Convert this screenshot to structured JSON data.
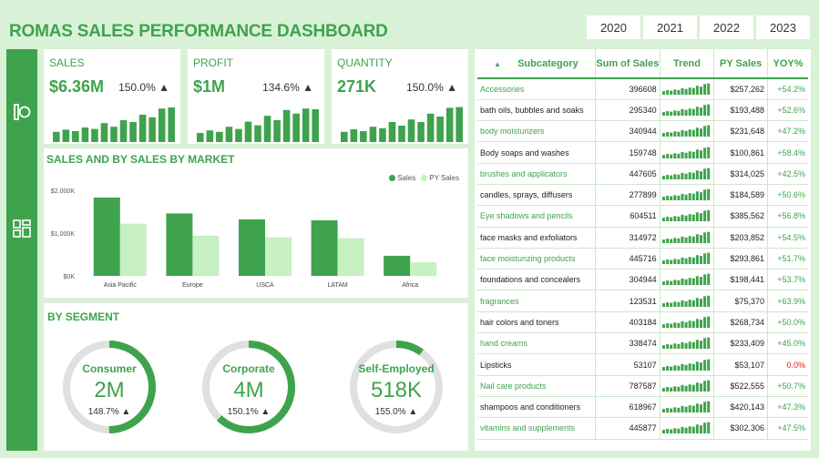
{
  "header": {
    "title": "ROMAS SALES PERFORMANCE DASHBOARD"
  },
  "years": [
    "2020",
    "2021",
    "2022",
    "2023"
  ],
  "colors": {
    "accent": "#3fa34d",
    "light": "#c7f0c3",
    "neutral": "#e0e0e0"
  },
  "kpis": [
    {
      "label": "SALES",
      "value": "$6.36M",
      "pct": "150.0% ▲",
      "trend": [
        0.28,
        0.34,
        0.3,
        0.4,
        0.36,
        0.52,
        0.42,
        0.6,
        0.55,
        0.75,
        0.68,
        0.92,
        0.95
      ]
    },
    {
      "label": "PROFIT",
      "value": "$1M",
      "pct": "134.6% ▲",
      "trend": [
        0.25,
        0.32,
        0.28,
        0.42,
        0.36,
        0.56,
        0.46,
        0.72,
        0.6,
        0.88,
        0.78,
        0.92,
        0.9
      ]
    },
    {
      "label": "QUANTITY",
      "value": "271K",
      "pct": "150.0% ▲",
      "trend": [
        0.28,
        0.35,
        0.3,
        0.42,
        0.38,
        0.55,
        0.45,
        0.62,
        0.55,
        0.78,
        0.7,
        0.94,
        0.96
      ]
    }
  ],
  "market": {
    "title": "SALES AND BY SALES BY MARKET",
    "legend": [
      "Sales",
      "PY Sales"
    ]
  },
  "chart_data": {
    "type": "bar",
    "categories": [
      "Asia Pacific",
      "Europe",
      "USCA",
      "LATAM",
      "Africa"
    ],
    "series": [
      {
        "name": "Sales",
        "values": [
          1830,
          1460,
          1320,
          1300,
          470
        ]
      },
      {
        "name": "PY Sales",
        "values": [
          1220,
          940,
          900,
          880,
          320
        ]
      }
    ],
    "ylim": [
      0,
      2000
    ],
    "yticks": [
      "$0K",
      "$1,000K",
      "$2,000K"
    ],
    "legend": "top-right",
    "grid": false
  },
  "segments": {
    "title": "BY SEGMENT",
    "items": [
      {
        "name": "Consumer",
        "value": "2M",
        "pct": "148.7% ▲",
        "share": 0.5
      },
      {
        "name": "Corporate",
        "value": "4M",
        "pct": "150.1% ▲",
        "share": 0.62
      },
      {
        "name": "Self-Employed",
        "value": "518K",
        "pct": "155.0% ▲",
        "share": 0.1
      }
    ]
  },
  "table": {
    "headers": [
      "Subcategory",
      "Sum of Sales",
      "Trend",
      "PY Sales",
      "YOY%"
    ],
    "rows": [
      {
        "cat": "Accessories",
        "sales": "396608",
        "py": "$257,262",
        "yoy": "+54.2%"
      },
      {
        "cat": "bath oils, bubbles and soaks",
        "sales": "295340",
        "py": "$193,488",
        "yoy": "+52.6%"
      },
      {
        "cat": "body moisturizers",
        "sales": "340944",
        "py": "$231,648",
        "yoy": "+47.2%"
      },
      {
        "cat": "Body soaps and washes",
        "sales": "159748",
        "py": "$100,861",
        "yoy": "+58.4%"
      },
      {
        "cat": "brushes and applicators",
        "sales": "447605",
        "py": "$314,025",
        "yoy": "+42.5%"
      },
      {
        "cat": "candles, sprays, diffusers",
        "sales": "277899",
        "py": "$184,589",
        "yoy": "+50.6%"
      },
      {
        "cat": "Eye shadows and pencils",
        "sales": "604511",
        "py": "$385,562",
        "yoy": "+56.8%"
      },
      {
        "cat": "face masks and exfoliators",
        "sales": "314972",
        "py": "$203,852",
        "yoy": "+54.5%"
      },
      {
        "cat": "face moisturizing products",
        "sales": "445716",
        "py": "$293,861",
        "yoy": "+51.7%"
      },
      {
        "cat": "foundations and concealers",
        "sales": "304944",
        "py": "$198,441",
        "yoy": "+53.7%"
      },
      {
        "cat": "fragrances",
        "sales": "123531",
        "py": "$75,370",
        "yoy": "+63.9%"
      },
      {
        "cat": "hair colors and toners",
        "sales": "403184",
        "py": "$268,734",
        "yoy": "+50.0%"
      },
      {
        "cat": "hand creams",
        "sales": "338474",
        "py": "$233,409",
        "yoy": "+45.0%"
      },
      {
        "cat": "Lipsticks",
        "sales": "53107",
        "py": "$53,107",
        "yoy": "0.0%"
      },
      {
        "cat": "Nail care products",
        "sales": "787587",
        "py": "$522,555",
        "yoy": "+50.7%"
      },
      {
        "cat": "shampoos and conditioners",
        "sales": "618967",
        "py": "$420,143",
        "yoy": "+47.3%"
      },
      {
        "cat": "vitamins and supplements",
        "sales": "445877",
        "py": "$302,306",
        "yoy": "+47.5%"
      }
    ]
  }
}
